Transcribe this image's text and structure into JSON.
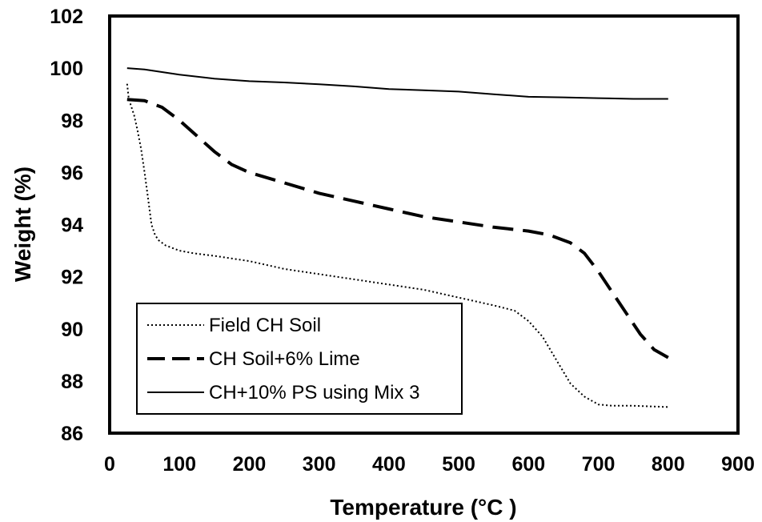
{
  "chart_data": {
    "type": "line",
    "title": "",
    "xlabel": "Temperature (°C )",
    "ylabel": "Weight (%)",
    "xlim": [
      0,
      900
    ],
    "ylim": [
      86,
      102
    ],
    "xticks": [
      "0",
      "100",
      "200",
      "300",
      "400",
      "500",
      "600",
      "700",
      "800",
      "900"
    ],
    "yticks": [
      "86",
      "88",
      "90",
      "92",
      "94",
      "96",
      "98",
      "100",
      "102"
    ],
    "grid": false,
    "legend_position": "bottom-left",
    "series": [
      {
        "name": "Field CH Soil",
        "style": "dotted",
        "color": "#000000",
        "x": [
          25,
          27,
          30,
          35,
          40,
          45,
          50,
          55,
          60,
          65,
          70,
          80,
          100,
          120,
          150,
          200,
          250,
          300,
          350,
          400,
          450,
          500,
          550,
          580,
          600,
          620,
          640,
          660,
          680,
          700,
          720,
          750,
          800
        ],
        "y": [
          99.4,
          98.9,
          98.6,
          98.2,
          97.6,
          96.9,
          96.0,
          95.0,
          94.0,
          93.6,
          93.4,
          93.2,
          93.0,
          92.9,
          92.8,
          92.6,
          92.3,
          92.1,
          91.9,
          91.7,
          91.5,
          91.2,
          90.9,
          90.7,
          90.3,
          89.7,
          88.8,
          87.9,
          87.4,
          87.1,
          87.05,
          87.05,
          87.0
        ]
      },
      {
        "name": "CH Soil+6% Lime",
        "style": "dashed",
        "color": "#000000",
        "x": [
          25,
          50,
          75,
          100,
          125,
          150,
          175,
          200,
          250,
          300,
          350,
          400,
          450,
          500,
          550,
          600,
          630,
          660,
          680,
          700,
          720,
          740,
          760,
          780,
          800
        ],
        "y": [
          98.8,
          98.75,
          98.5,
          98.0,
          97.4,
          96.8,
          96.3,
          96.0,
          95.6,
          95.2,
          94.9,
          94.6,
          94.3,
          94.1,
          93.9,
          93.75,
          93.6,
          93.3,
          92.9,
          92.2,
          91.4,
          90.6,
          89.8,
          89.2,
          88.9
        ]
      },
      {
        "name": "CH+10% PS using Mix 3",
        "style": "solid",
        "color": "#000000",
        "x": [
          25,
          50,
          100,
          150,
          200,
          250,
          300,
          350,
          400,
          450,
          500,
          550,
          600,
          650,
          700,
          750,
          800
        ],
        "y": [
          100.0,
          99.95,
          99.75,
          99.6,
          99.5,
          99.45,
          99.38,
          99.3,
          99.2,
          99.15,
          99.1,
          99.0,
          98.9,
          98.88,
          98.85,
          98.82,
          98.82
        ]
      }
    ]
  }
}
